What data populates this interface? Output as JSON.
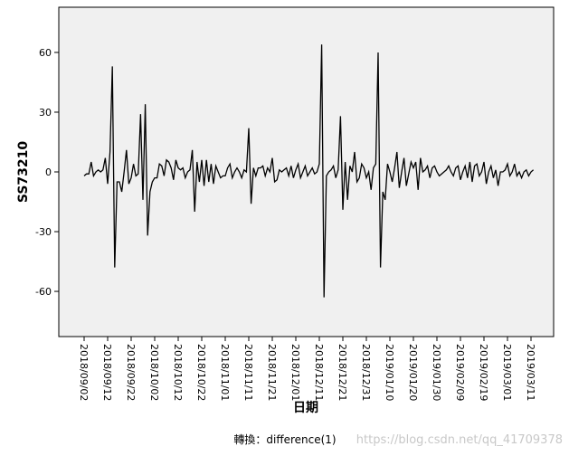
{
  "chart_data": {
    "type": "line",
    "y_label": "SS73210",
    "x_label": "日期",
    "footnote": "轉換：difference(1)",
    "watermark": "https://blog.csdn.net/qq_41709378",
    "categories": [
      "2018/09/02",
      null,
      null,
      null,
      null,
      null,
      null,
      null,
      null,
      null,
      "2018/09/12",
      null,
      null,
      null,
      null,
      null,
      null,
      null,
      null,
      null,
      "2018/09/22",
      null,
      null,
      null,
      null,
      null,
      null,
      null,
      null,
      null,
      "2018/10/02",
      null,
      null,
      null,
      null,
      null,
      null,
      null,
      null,
      null,
      "2018/10/12",
      null,
      null,
      null,
      null,
      null,
      null,
      null,
      null,
      null,
      "2018/10/22",
      null,
      null,
      null,
      null,
      null,
      null,
      null,
      null,
      null,
      "2018/11/01",
      null,
      null,
      null,
      null,
      null,
      null,
      null,
      null,
      null,
      "2018/11/11",
      null,
      null,
      null,
      null,
      null,
      null,
      null,
      null,
      null,
      "2018/11/21",
      null,
      null,
      null,
      null,
      null,
      null,
      null,
      null,
      null,
      "2018/12/01",
      null,
      null,
      null,
      null,
      null,
      null,
      null,
      null,
      null,
      "2018/12/11",
      null,
      null,
      null,
      null,
      null,
      null,
      null,
      null,
      null,
      "2018/12/21",
      null,
      null,
      null,
      null,
      null,
      null,
      null,
      null,
      null,
      "2018/12/31",
      null,
      null,
      null,
      null,
      null,
      null,
      null,
      null,
      null,
      "2019/01/10",
      null,
      null,
      null,
      null,
      null,
      null,
      null,
      null,
      null,
      "2019/01/20",
      null,
      null,
      null,
      null,
      null,
      null,
      null,
      null,
      null,
      "2019/01/30",
      null,
      null,
      null,
      null,
      null,
      null,
      null,
      null,
      null,
      "2019/02/09",
      null,
      null,
      null,
      null,
      null,
      null,
      null,
      null,
      null,
      "2019/02/19",
      null,
      null,
      null,
      null,
      null,
      null,
      null,
      null,
      null,
      "2019/03/01",
      null,
      null,
      null,
      null,
      null,
      null,
      null,
      null,
      null,
      "2019/03/11",
      null
    ],
    "series": [
      {
        "color": "#000000",
        "values": [
          -2,
          -1,
          -1,
          5,
          -2,
          0,
          1,
          0,
          1,
          7,
          -6,
          10,
          53,
          -48,
          -5,
          -5,
          -10,
          0,
          11,
          -6,
          -3,
          4,
          -2,
          -1,
          29,
          -14,
          34,
          -32,
          -10,
          -5,
          -3,
          -3,
          4,
          3,
          -2,
          6,
          5,
          2,
          -4,
          6,
          2,
          1,
          2,
          -3,
          0,
          1,
          11,
          -20,
          5,
          -5,
          6,
          -7,
          6,
          -5,
          4,
          -6,
          3,
          0,
          -3,
          -2,
          -2,
          2,
          4,
          -3,
          0,
          2,
          0,
          -3,
          1,
          0,
          22,
          -16,
          2,
          -2,
          2,
          2,
          3,
          -2,
          2,
          0,
          7,
          -5,
          -4,
          1,
          0,
          1,
          2,
          -2,
          3,
          -3,
          1,
          4,
          -3,
          0,
          3,
          -2,
          0,
          2,
          -1,
          0,
          4,
          64,
          -63,
          -2,
          0,
          1,
          3,
          -3,
          1,
          28,
          -19,
          5,
          -14,
          3,
          0,
          10,
          -5,
          -3,
          4,
          2,
          -3,
          0,
          -9,
          2,
          4,
          60,
          -48,
          -10,
          -14,
          4,
          0,
          -5,
          2,
          10,
          -8,
          0,
          7,
          -7,
          -1,
          5,
          2,
          5,
          -9,
          7,
          0,
          1,
          3,
          -3,
          2,
          3,
          0,
          -2,
          -1,
          0,
          1,
          3,
          0,
          -2,
          2,
          3,
          -4,
          0,
          3,
          -3,
          5,
          -5,
          3,
          4,
          -2,
          0,
          5,
          -6,
          0,
          3,
          -3,
          1,
          -7,
          0,
          0,
          1,
          4,
          -2,
          0,
          4,
          -2,
          0,
          -3,
          0,
          1,
          -2,
          0,
          1
        ]
      }
    ],
    "ylim": [
      -82.7,
      82.7
    ],
    "yticks": [
      -60,
      -30,
      0,
      30,
      60
    ],
    "grid": false
  }
}
